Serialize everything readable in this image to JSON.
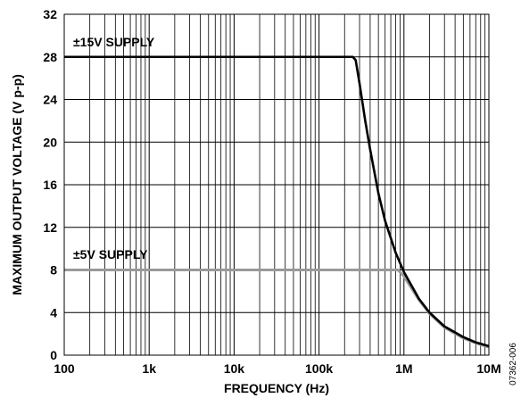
{
  "chart_data": {
    "type": "line",
    "title": "",
    "xlabel": "FREQUENCY (Hz)",
    "ylabel": "MAXIMUM OUTPUT VOLTAGE (V p-p)",
    "x_scale": "log",
    "xlim": [
      100,
      10000000
    ],
    "ylim": [
      0,
      32
    ],
    "grid": true,
    "x_tick_values": [
      100,
      1000,
      10000,
      100000,
      1000000,
      10000000
    ],
    "x_tick_labels": [
      "100",
      "1k",
      "10k",
      "100k",
      "1M",
      "10M"
    ],
    "y_tick_values": [
      0,
      4,
      8,
      12,
      16,
      20,
      24,
      28,
      32
    ],
    "y_tick_labels": [
      "0",
      "4",
      "8",
      "12",
      "16",
      "20",
      "24",
      "28",
      "32"
    ],
    "series": [
      {
        "name": "±15V SUPPLY",
        "color": "#000000",
        "x": [
          100,
          250000,
          270000,
          300000,
          350000,
          400000,
          500000,
          600000,
          800000,
          1000000,
          1500000,
          2000000,
          3000000,
          5000000,
          7000000,
          10000000
        ],
        "y": [
          28,
          28,
          27.7,
          25.5,
          22,
          19.3,
          15.2,
          12.6,
          9.6,
          7.8,
          5.3,
          4.0,
          2.7,
          1.7,
          1.2,
          0.85
        ]
      },
      {
        "name": "±5V SUPPLY",
        "color": "#999999",
        "x": [
          100,
          850000,
          1000000,
          1500000,
          2000000,
          3000000,
          5000000,
          7000000,
          10000000
        ],
        "y": [
          8,
          8,
          7.4,
          5.2,
          3.9,
          2.6,
          1.6,
          1.15,
          0.75
        ]
      }
    ],
    "annotations": [
      "±15V SUPPLY",
      "±5V SUPPLY"
    ]
  },
  "figure_id": "07362-006"
}
